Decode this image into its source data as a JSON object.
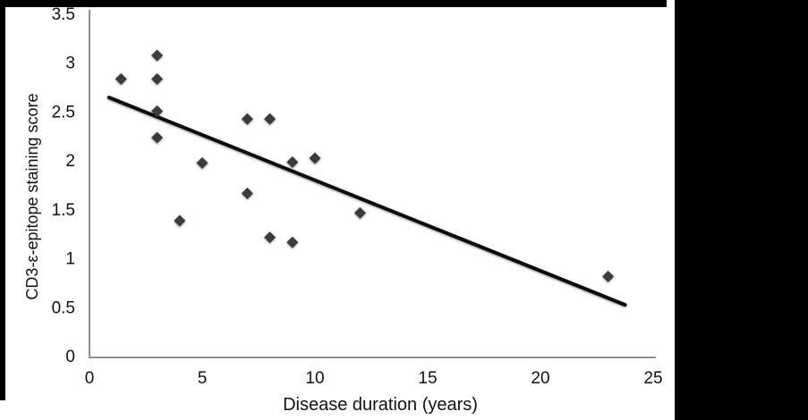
{
  "figure": {
    "background": "#ffffff",
    "frame_color": "#000000"
  },
  "chart_data": {
    "type": "scatter",
    "title": "",
    "xlabel": "Disease duration (years)",
    "ylabel": "CD3-ε-epitope staining score",
    "xlim": [
      0,
      25
    ],
    "ylim": [
      0,
      3.5
    ],
    "x_ticks": [
      0,
      5,
      10,
      15,
      20,
      25
    ],
    "y_ticks": [
      0,
      0.5,
      1,
      1.5,
      2,
      2.5,
      3,
      3.5
    ],
    "grid": "off",
    "legend": "none",
    "marker_shape": "diamond",
    "marker_color": "#3a3a3a",
    "trendline_color": "#0a0a0a",
    "axis_color": "#8f8f8f",
    "points": [
      {
        "x": 1.4,
        "y": 2.83
      },
      {
        "x": 3,
        "y": 3.07
      },
      {
        "x": 3,
        "y": 2.83
      },
      {
        "x": 3,
        "y": 2.5
      },
      {
        "x": 3,
        "y": 2.23
      },
      {
        "x": 4,
        "y": 1.38
      },
      {
        "x": 5,
        "y": 1.97
      },
      {
        "x": 7,
        "y": 2.42
      },
      {
        "x": 7,
        "y": 1.66
      },
      {
        "x": 8,
        "y": 2.42
      },
      {
        "x": 8,
        "y": 1.21
      },
      {
        "x": 9,
        "y": 1.98
      },
      {
        "x": 9,
        "y": 1.16
      },
      {
        "x": 10,
        "y": 2.02
      },
      {
        "x": 12,
        "y": 1.46
      },
      {
        "x": 23,
        "y": 0.81
      }
    ],
    "trendline": {
      "x1": 0.87,
      "y1": 2.64,
      "x2": 23.75,
      "y2": 0.52
    }
  }
}
